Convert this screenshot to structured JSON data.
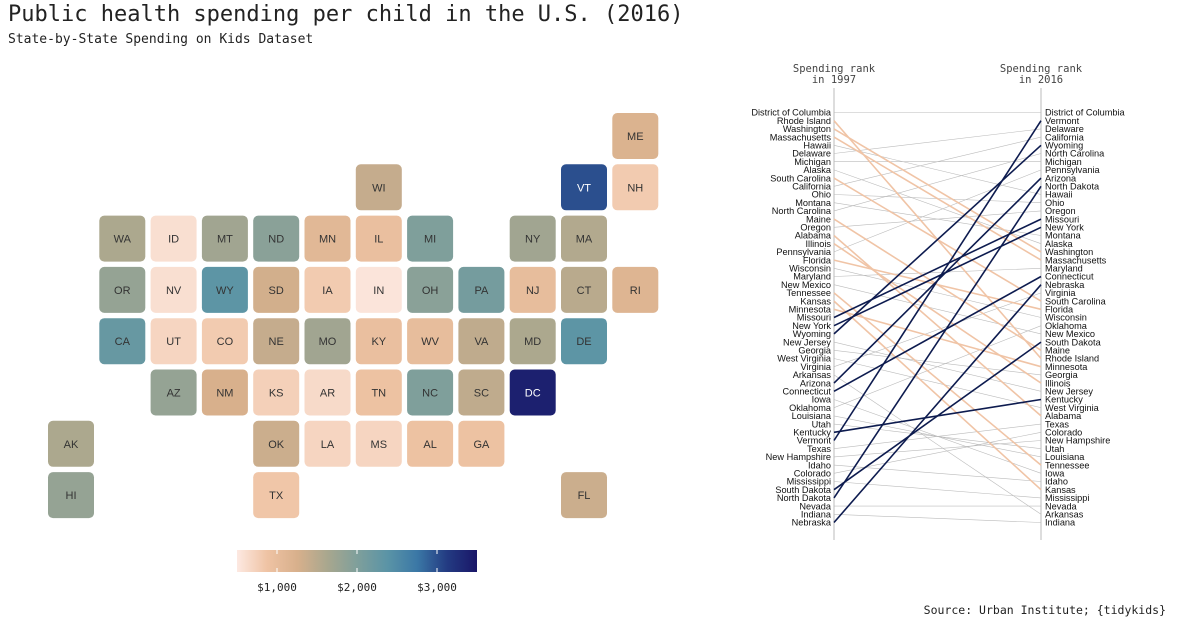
{
  "title": "Public health spending per child in the U.S. (2016)",
  "subtitle": "State-by-State Spending on Kids Dataset",
  "caption": "Source: Urban Institute; {tidykids}",
  "colors": {
    "scale": [
      "#fde9e2",
      "#efc3a4",
      "#d8b08c",
      "#a9a78e",
      "#7f9f9b",
      "#5b94a6",
      "#3b78a6",
      "#233b82",
      "#1a1668"
    ],
    "highlight_line": "#0d1b4f",
    "faded_line": "#f0c4a6",
    "neutral_line": "#bbbbbb"
  },
  "chart_data": [
    {
      "type": "heatmap",
      "description_kind": "tile-grid map",
      "unit": "USD per child",
      "legend": {
        "ticks": [
          "$1,000",
          "$2,000",
          "$3,000"
        ],
        "tick_values": [
          1000,
          2000,
          3000
        ],
        "range": [
          500,
          3500
        ]
      },
      "tiles": [
        {
          "abbr": "ME",
          "row": 0,
          "col": 11,
          "value": 1200
        },
        {
          "abbr": "WI",
          "row": 1,
          "col": 6,
          "value": 1400
        },
        {
          "abbr": "VT",
          "row": 1,
          "col": 10,
          "value": 3000
        },
        {
          "abbr": "NH",
          "row": 1,
          "col": 11,
          "value": 800
        },
        {
          "abbr": "WA",
          "row": 2,
          "col": 1,
          "value": 1600
        },
        {
          "abbr": "ID",
          "row": 2,
          "col": 2,
          "value": 600
        },
        {
          "abbr": "MT",
          "row": 2,
          "col": 3,
          "value": 1700
        },
        {
          "abbr": "ND",
          "row": 2,
          "col": 4,
          "value": 1900
        },
        {
          "abbr": "MN",
          "row": 2,
          "col": 5,
          "value": 1100
        },
        {
          "abbr": "IL",
          "row": 2,
          "col": 6,
          "value": 950
        },
        {
          "abbr": "MI",
          "row": 2,
          "col": 7,
          "value": 2000
        },
        {
          "abbr": "NY",
          "row": 2,
          "col": 9,
          "value": 1700
        },
        {
          "abbr": "MA",
          "row": 2,
          "col": 10,
          "value": 1550
        },
        {
          "abbr": "OR",
          "row": 3,
          "col": 1,
          "value": 1800
        },
        {
          "abbr": "NV",
          "row": 3,
          "col": 2,
          "value": 600
        },
        {
          "abbr": "WY",
          "row": 3,
          "col": 3,
          "value": 2350
        },
        {
          "abbr": "SD",
          "row": 3,
          "col": 4,
          "value": 1300
        },
        {
          "abbr": "IA",
          "row": 3,
          "col": 5,
          "value": 800
        },
        {
          "abbr": "IN",
          "row": 3,
          "col": 6,
          "value": 550
        },
        {
          "abbr": "OH",
          "row": 3,
          "col": 7,
          "value": 1900
        },
        {
          "abbr": "PA",
          "row": 3,
          "col": 8,
          "value": 2100
        },
        {
          "abbr": "NJ",
          "row": 3,
          "col": 9,
          "value": 1000
        },
        {
          "abbr": "CT",
          "row": 3,
          "col": 10,
          "value": 1500
        },
        {
          "abbr": "RI",
          "row": 3,
          "col": 11,
          "value": 1150
        },
        {
          "abbr": "CA",
          "row": 4,
          "col": 1,
          "value": 2250
        },
        {
          "abbr": "UT",
          "row": 4,
          "col": 2,
          "value": 700
        },
        {
          "abbr": "CO",
          "row": 4,
          "col": 3,
          "value": 800
        },
        {
          "abbr": "NE",
          "row": 4,
          "col": 4,
          "value": 1400
        },
        {
          "abbr": "MO",
          "row": 4,
          "col": 5,
          "value": 1700
        },
        {
          "abbr": "KY",
          "row": 4,
          "col": 6,
          "value": 950
        },
        {
          "abbr": "WV",
          "row": 4,
          "col": 7,
          "value": 1000
        },
        {
          "abbr": "VA",
          "row": 4,
          "col": 8,
          "value": 1450
        },
        {
          "abbr": "MD",
          "row": 4,
          "col": 9,
          "value": 1600
        },
        {
          "abbr": "DE",
          "row": 4,
          "col": 10,
          "value": 2350
        },
        {
          "abbr": "AZ",
          "row": 5,
          "col": 2,
          "value": 1800
        },
        {
          "abbr": "NM",
          "row": 5,
          "col": 3,
          "value": 1250
        },
        {
          "abbr": "KS",
          "row": 5,
          "col": 4,
          "value": 750
        },
        {
          "abbr": "AR",
          "row": 5,
          "col": 5,
          "value": 650
        },
        {
          "abbr": "TN",
          "row": 5,
          "col": 6,
          "value": 900
        },
        {
          "abbr": "NC",
          "row": 5,
          "col": 7,
          "value": 2000
        },
        {
          "abbr": "SC",
          "row": 5,
          "col": 8,
          "value": 1450
        },
        {
          "abbr": "DC",
          "row": 5,
          "col": 9,
          "value": 3400
        },
        {
          "abbr": "AK",
          "row": 6,
          "col": 0,
          "value": 1600
        },
        {
          "abbr": "OK",
          "row": 6,
          "col": 4,
          "value": 1350
        },
        {
          "abbr": "LA",
          "row": 6,
          "col": 5,
          "value": 700
        },
        {
          "abbr": "MS",
          "row": 6,
          "col": 6,
          "value": 700
        },
        {
          "abbr": "AL",
          "row": 6,
          "col": 7,
          "value": 900
        },
        {
          "abbr": "GA",
          "row": 6,
          "col": 8,
          "value": 900
        },
        {
          "abbr": "HI",
          "row": 7,
          "col": 0,
          "value": 1800
        },
        {
          "abbr": "TX",
          "row": 7,
          "col": 4,
          "value": 850
        },
        {
          "abbr": "FL",
          "row": 7,
          "col": 10,
          "value": 1350
        }
      ]
    },
    {
      "type": "line",
      "description_kind": "slope chart of state ranks",
      "left_header": [
        "Spending rank",
        "in 1997"
      ],
      "right_header": [
        "Spending rank",
        "in 2016"
      ],
      "rank_1997": [
        "District of Columbia",
        "Rhode Island",
        "Washington",
        "Massachusetts",
        "Hawaii",
        "Delaware",
        "Michigan",
        "Alaska",
        "South Carolina",
        "California",
        "Ohio",
        "Montana",
        "North Carolina",
        "Maine",
        "Oregon",
        "Alabama",
        "Illinois",
        "Pennsylvania",
        "Florida",
        "Wisconsin",
        "Maryland",
        "New Mexico",
        "Tennessee",
        "Kansas",
        "Minnesota",
        "Missouri",
        "New York",
        "Wyoming",
        "New Jersey",
        "Georgia",
        "West Virginia",
        "Virginia",
        "Arkansas",
        "Arizona",
        "Connecticut",
        "Iowa",
        "Oklahoma",
        "Louisiana",
        "Utah",
        "Kentucky",
        "Vermont",
        "Texas",
        "New Hampshire",
        "Idaho",
        "Colorado",
        "Mississippi",
        "South Dakota",
        "North Dakota",
        "Nevada",
        "Indiana",
        "Nebraska"
      ],
      "rank_2016": [
        "District of Columbia",
        "Vermont",
        "Delaware",
        "California",
        "Wyoming",
        "North Carolina",
        "Michigan",
        "Pennsylvania",
        "Arizona",
        "North Dakota",
        "Hawaii",
        "Ohio",
        "Oregon",
        "Missouri",
        "New York",
        "Montana",
        "Alaska",
        "Washington",
        "Massachusetts",
        "Maryland",
        "Connecticut",
        "Nebraska",
        "Virginia",
        "South Carolina",
        "Florida",
        "Wisconsin",
        "Oklahoma",
        "New Mexico",
        "South Dakota",
        "Maine",
        "Rhode Island",
        "Minnesota",
        "Georgia",
        "Illinois",
        "New Jersey",
        "Kentucky",
        "West Virginia",
        "Alabama",
        "Texas",
        "Colorado",
        "New Hampshire",
        "Utah",
        "Louisiana",
        "Tennessee",
        "Iowa",
        "Idaho",
        "Kansas",
        "Mississippi",
        "Nevada",
        "Arkansas",
        "Indiana"
      ],
      "rose_strongly": [
        "Vermont",
        "North Dakota",
        "Nebraska",
        "South Dakota",
        "Arizona",
        "Connecticut",
        "Wyoming",
        "New York",
        "Missouri",
        "Kentucky"
      ],
      "fell_strongly": [
        "Rhode Island",
        "Washington",
        "Massachusetts",
        "South Carolina",
        "Maine",
        "Alabama",
        "Illinois",
        "Florida",
        "Tennessee",
        "Kansas",
        "Minnesota"
      ]
    }
  ]
}
